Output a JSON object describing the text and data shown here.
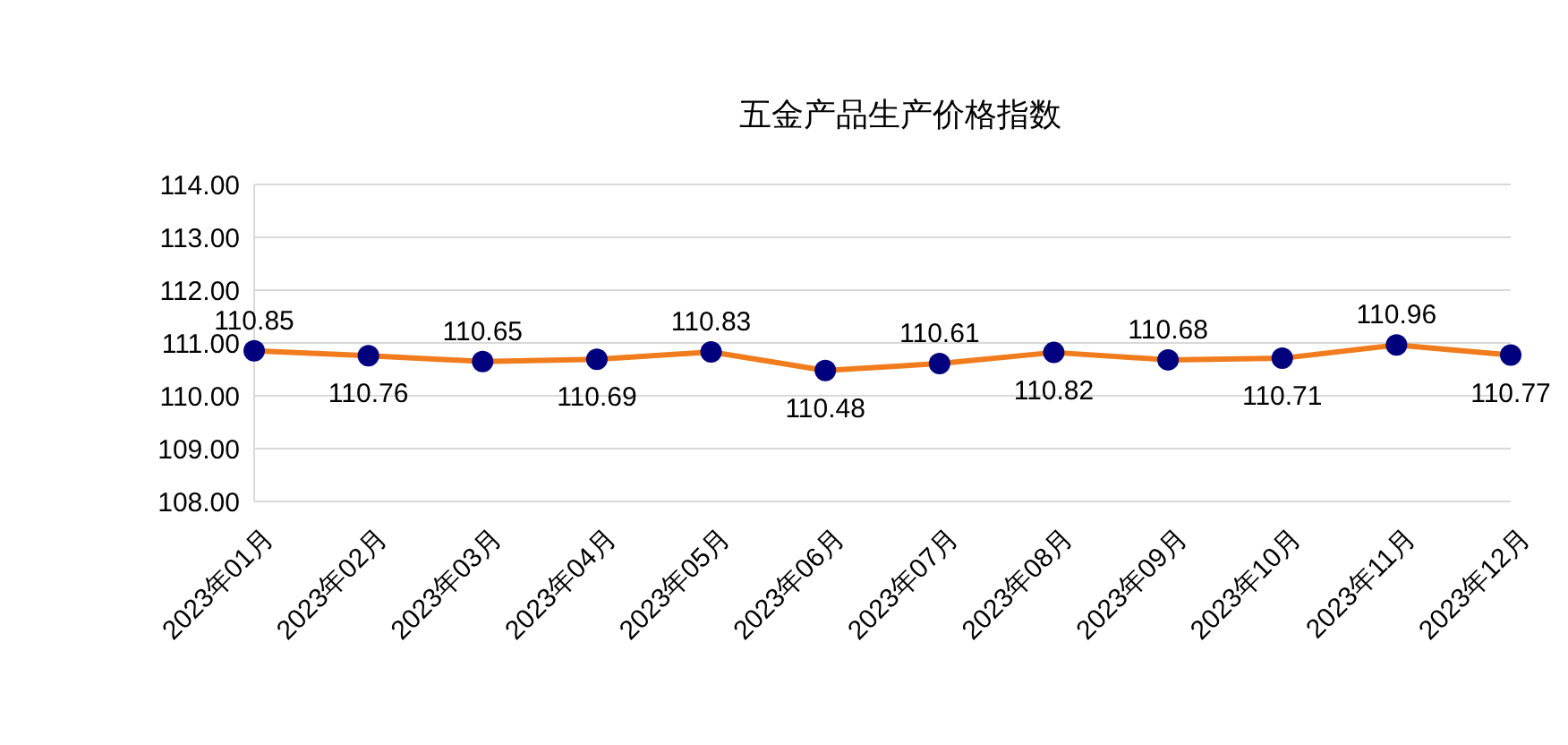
{
  "chart_data": {
    "type": "line",
    "title": "五金产品生产价格指数",
    "categories": [
      "2023年01月",
      "2023年02月",
      "2023年03月",
      "2023年04月",
      "2023年05月",
      "2023年06月",
      "2023年07月",
      "2023年08月",
      "2023年09月",
      "2023年10月",
      "2023年11月",
      "2023年12月"
    ],
    "series": [
      {
        "color": "#f07c1e",
        "values": [
          110.85,
          110.76,
          110.65,
          110.69,
          110.83,
          110.48,
          110.61,
          110.82,
          110.68,
          110.71,
          110.96,
          110.77
        ]
      }
    ],
    "ylim": [
      108,
      114
    ],
    "yticks": [
      {
        "value": 108,
        "label": "108.00"
      },
      {
        "value": 109,
        "label": "109.00"
      },
      {
        "value": 110,
        "label": "110.00"
      },
      {
        "value": 111,
        "label": "111.00"
      },
      {
        "value": 112,
        "label": "112.00"
      },
      {
        "value": 113,
        "label": "113.00"
      },
      {
        "value": 114,
        "label": "114.00"
      }
    ],
    "grid": "y",
    "marker": "circle",
    "line_style": "solid",
    "data_labels": true
  }
}
